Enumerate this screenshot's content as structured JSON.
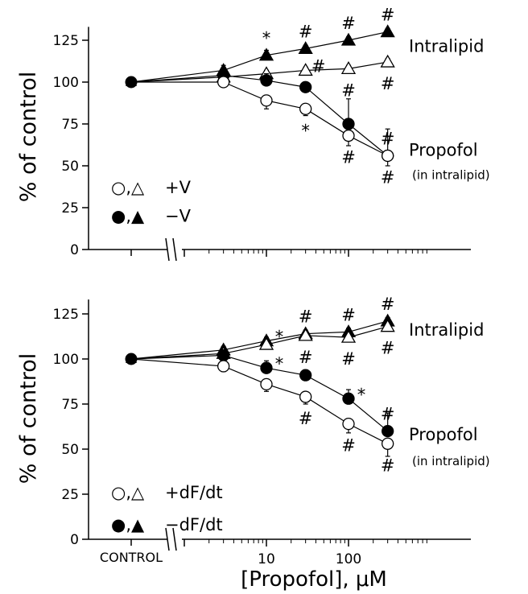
{
  "x_axis": {
    "control_label": "CONTROL",
    "tick_labels": [
      "10",
      "100"
    ],
    "xlabel": "[Propofol], μM"
  },
  "y_ticks": [
    "0",
    "25",
    "50",
    "75",
    "100",
    "125"
  ],
  "chart_data": [
    {
      "type": "line",
      "title": "",
      "ylabel": "% of control",
      "xlabel": "",
      "ylim": [
        0,
        135
      ],
      "x_scale": "log",
      "control": {
        "x": "CONTROL",
        "y": 100
      },
      "series": [
        {
          "name": "Intralipid",
          "legend": "−V",
          "marker": "filled-triangle",
          "x": [
            3,
            10,
            30,
            100,
            300
          ],
          "y": [
            107,
            116,
            120,
            125,
            130
          ],
          "err": [
            3,
            3,
            2,
            2,
            2
          ],
          "marks": [
            null,
            "*",
            "#",
            "#",
            "#"
          ],
          "mark_pos": [
            null,
            "above",
            "above",
            "above",
            "above"
          ]
        },
        {
          "name": "Intralipid",
          "legend": "+V",
          "marker": "open-triangle",
          "x": [
            3,
            10,
            30,
            100,
            300
          ],
          "y": [
            103,
            105,
            107,
            108,
            112
          ],
          "err": [
            2,
            2,
            2,
            2,
            2
          ],
          "marks": [
            null,
            null,
            "#",
            "#",
            "#"
          ],
          "mark_pos": [
            null,
            null,
            "right",
            "below",
            "below"
          ]
        },
        {
          "name": "Propofol",
          "legend": "−V",
          "marker": "filled-circle",
          "x": [
            3,
            10,
            30,
            100,
            300
          ],
          "y": [
            104,
            101,
            97,
            75,
            56
          ],
          "err": [
            3,
            4,
            3,
            15,
            16
          ],
          "marks": [
            null,
            null,
            null,
            null,
            "#"
          ],
          "mark_pos": [
            null,
            null,
            null,
            null,
            "above"
          ]
        },
        {
          "name": "Propofol",
          "legend": "+V",
          "marker": "open-circle",
          "x": [
            3,
            10,
            30,
            100,
            300
          ],
          "y": [
            100,
            89,
            84,
            68,
            56
          ],
          "err": [
            3,
            5,
            4,
            6,
            6
          ],
          "marks": [
            null,
            null,
            "*",
            "#",
            "#"
          ],
          "mark_pos": [
            null,
            null,
            "below",
            "below",
            "below"
          ]
        }
      ],
      "annotations": {
        "intralipid": "Intralipid",
        "propofol": "Propofol",
        "propofol_sub": "(in intralipid)"
      },
      "legend": {
        "open_symbols": "○,△",
        "filled_symbols": "●,▲",
        "open_label": "+V",
        "filled_label": "−V"
      }
    },
    {
      "type": "line",
      "title": "",
      "ylabel": "% of control",
      "xlabel": "[Propofol], μM",
      "ylim": [
        0,
        135
      ],
      "x_scale": "log",
      "control": {
        "x": "CONTROL",
        "y": 100
      },
      "series": [
        {
          "name": "Intralipid",
          "legend": "−dF/dt",
          "marker": "filled-triangle",
          "x": [
            3,
            10,
            30,
            100,
            300
          ],
          "y": [
            105,
            110,
            114,
            115,
            121
          ],
          "err": [
            2,
            2,
            2,
            2,
            2
          ],
          "marks": [
            null,
            "*",
            "#",
            "#",
            "#"
          ],
          "mark_pos": [
            null,
            "right",
            "above",
            "above",
            "above"
          ]
        },
        {
          "name": "Intralipid",
          "legend": "+dF/dt",
          "marker": "open-triangle",
          "x": [
            3,
            10,
            30,
            100,
            300
          ],
          "y": [
            103,
            108,
            113,
            112,
            118
          ],
          "err": [
            2,
            2,
            2,
            2,
            2
          ],
          "marks": [
            null,
            null,
            "#",
            "#",
            "#"
          ],
          "mark_pos": [
            null,
            null,
            "below",
            "below",
            "below"
          ]
        },
        {
          "name": "Propofol",
          "legend": "−dF/dt",
          "marker": "filled-circle",
          "x": [
            3,
            10,
            30,
            100,
            300
          ],
          "y": [
            102,
            95,
            91,
            78,
            60
          ],
          "err": [
            3,
            4,
            3,
            5,
            10
          ],
          "marks": [
            null,
            "*",
            null,
            "*",
            "#"
          ],
          "mark_pos": [
            null,
            "right",
            null,
            "right",
            "above"
          ]
        },
        {
          "name": "Propofol",
          "legend": "+dF/dt",
          "marker": "open-circle",
          "x": [
            3,
            10,
            30,
            100,
            300
          ],
          "y": [
            96,
            86,
            79,
            64,
            53
          ],
          "err": [
            3,
            4,
            4,
            5,
            7
          ],
          "marks": [
            null,
            null,
            "#",
            "#",
            "#"
          ],
          "mark_pos": [
            null,
            null,
            "below",
            "below",
            "below"
          ]
        }
      ],
      "annotations": {
        "intralipid": "Intralipid",
        "propofol": "Propofol",
        "propofol_sub": "(in intralipid)"
      },
      "legend": {
        "open_symbols": "○,△",
        "filled_symbols": "●,▲",
        "open_label": "+dF/dt",
        "filled_label": "−dF/dt"
      }
    }
  ]
}
